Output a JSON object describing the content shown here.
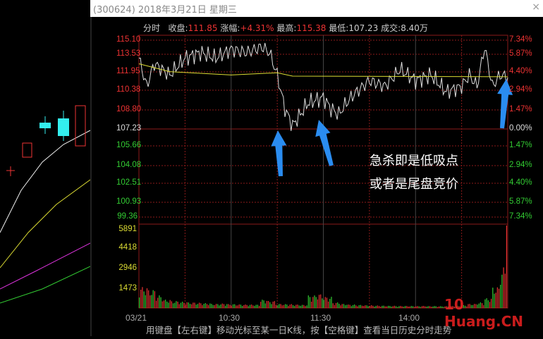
{
  "window": {
    "title": "(300624) 2018年3月21日 星期三",
    "close": "×"
  },
  "info": {
    "mode": "分时",
    "close_label": "收盘:",
    "close": "111.85",
    "chg_label": "涨幅:",
    "chg": "+4.31%",
    "high_label": "最高:",
    "high": "115.38",
    "low_label": "最低:",
    "low": "107.23",
    "vol_label": "成交:",
    "vol": "8.40万"
  },
  "price_axis": [
    "115.10",
    "113.53",
    "111.95",
    "110.38",
    "108.80",
    "107.23",
    "105.66",
    "104.08",
    "102.51",
    "100.93",
    "99.36"
  ],
  "pct_axis": [
    "7.34%",
    "5.87%",
    "4.40%",
    "2.94%",
    "1.47%",
    "0.00%",
    "1.47%",
    "2.94%",
    "4.40%",
    "5.87%",
    "7.34%"
  ],
  "vol_axis": [
    "5891",
    "4418",
    "2946",
    "1473"
  ],
  "time_axis": [
    "03/21",
    "10:30",
    "11:30",
    "14:00"
  ],
  "annotations": [
    "急杀即是低吸点",
    "或者是尾盘竞价"
  ],
  "footer": "用键盘【左右键】移动光标至某一日K线，按【空格键】查看当日历史分时走势",
  "watermark": "10 拾荒网 Huang.CN",
  "colors": {
    "up": "#e33",
    "down": "#3c3",
    "price_line": "#ddd",
    "avg_line": "#dd3",
    "arrow": "#2a8cf0",
    "grid": "#8b1a1a"
  },
  "chart_data": {
    "type": "line",
    "ylim": [
      99.36,
      115.1
    ],
    "prev_close": 107.23,
    "price": [
      [
        0,
        113.5
      ],
      [
        5,
        111
      ],
      [
        10,
        113
      ],
      [
        20,
        112
      ],
      [
        30,
        113.5
      ],
      [
        40,
        114
      ],
      [
        50,
        113.5
      ],
      [
        60,
        114.3
      ],
      [
        70,
        114
      ],
      [
        80,
        114.5
      ],
      [
        85,
        114
      ],
      [
        90,
        112
      ],
      [
        95,
        109
      ],
      [
        100,
        107.5
      ],
      [
        105,
        108.5
      ],
      [
        110,
        109.5
      ],
      [
        120,
        110
      ],
      [
        125,
        109
      ],
      [
        130,
        108.5
      ],
      [
        135,
        109.5
      ],
      [
        140,
        110.3
      ],
      [
        150,
        111.5
      ],
      [
        160,
        111
      ],
      [
        170,
        112.5
      ],
      [
        180,
        111.5
      ],
      [
        190,
        112
      ],
      [
        200,
        110.5
      ],
      [
        210,
        111
      ],
      [
        215,
        112
      ],
      [
        220,
        111
      ],
      [
        225,
        114.5
      ],
      [
        230,
        111
      ],
      [
        235,
        112
      ],
      [
        240,
        111.8
      ]
    ],
    "avg": [
      [
        0,
        113
      ],
      [
        20,
        112.3
      ],
      [
        60,
        112
      ],
      [
        90,
        112.2
      ],
      [
        100,
        111.9
      ],
      [
        240,
        111.85
      ]
    ],
    "volume_max": 5891,
    "volume": [
      1500,
      1300,
      900,
      600,
      500,
      450,
      400,
      380,
      350,
      300,
      320,
      280,
      260,
      250,
      240,
      600,
      500,
      300,
      280,
      250,
      230,
      900,
      1000,
      800,
      400,
      300,
      250,
      220,
      200,
      180,
      170,
      160,
      150,
      150,
      140,
      150,
      140,
      130,
      130,
      150,
      200,
      300,
      400,
      700,
      1500,
      2900
    ]
  }
}
